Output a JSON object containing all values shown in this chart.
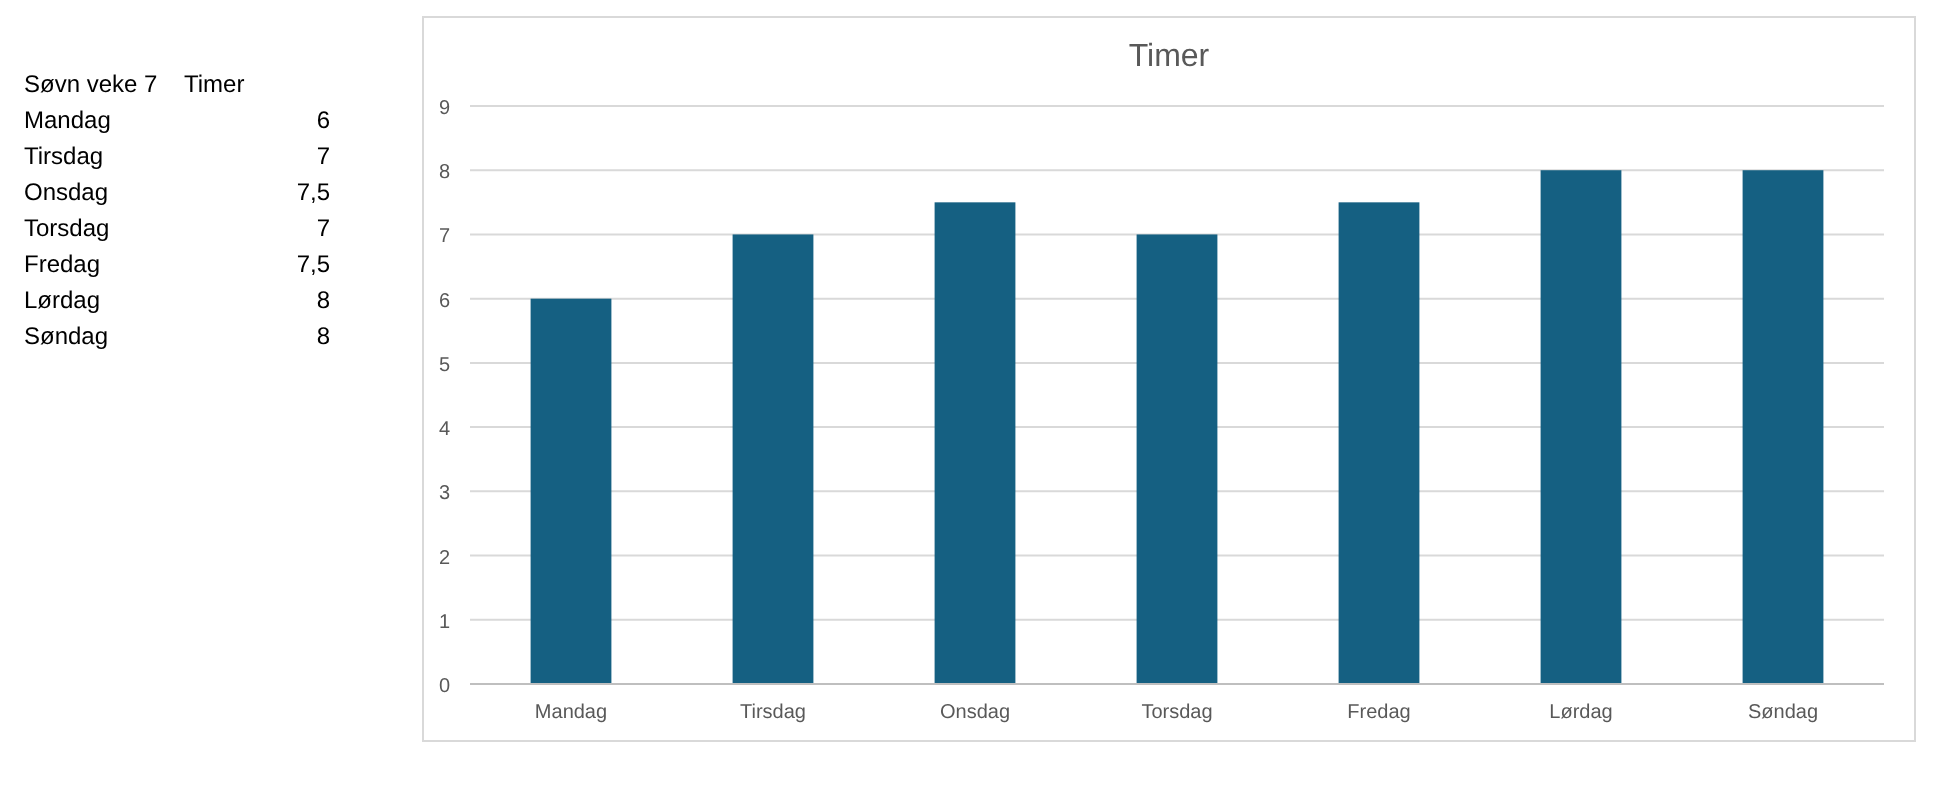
{
  "chart_data": [
    {
      "type": "other",
      "annotations": [
        "Søvn veke 7",
        "Timer",
        "Mandag",
        "6",
        "Tirsdag",
        "7",
        "Onsdag",
        "7,5",
        "Torsdag",
        "7",
        "Fredag",
        "7,5",
        "Lørdag",
        "8",
        "Søndag",
        "8"
      ]
    },
    {
      "type": "bar",
      "title": "Timer",
      "categories": [
        "Mandag",
        "Tirsdag",
        "Onsdag",
        "Torsdag",
        "Fredag",
        "Lørdag",
        "Søndag"
      ],
      "values": [
        6,
        7,
        7.5,
        7,
        7.5,
        8,
        8
      ],
      "color": "#156082",
      "ylim": [
        0,
        9
      ],
      "yticks": [
        0,
        1,
        2,
        3,
        4,
        5,
        6,
        7,
        8,
        9
      ],
      "grid": "y"
    }
  ]
}
